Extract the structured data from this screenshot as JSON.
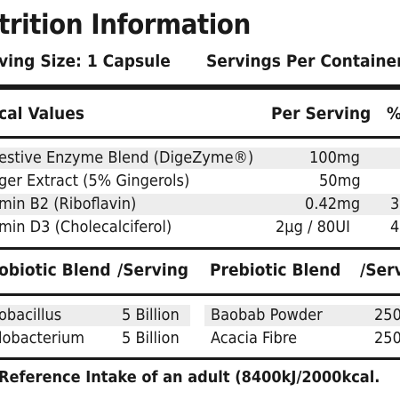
{
  "title": "trition Information",
  "serving_size": "ving Size: 1 Capsule",
  "servings_per_container": "Servings Per Container:",
  "values_table": {
    "headers": {
      "name": "cal Values",
      "per_serving": "Per Serving",
      "percent": "%"
    },
    "rows": [
      {
        "name": "estive Enzyme Blend (DigeZyme®)",
        "per_serving": "100mg",
        "percent": ""
      },
      {
        "name": "ger Extract (5% Gingerols)",
        "per_serving": "50mg",
        "percent": ""
      },
      {
        "name": "min B2 (Riboflavin)",
        "per_serving": "0.42mg",
        "percent": "3"
      },
      {
        "name": "min D3 (Cholecalciferol)",
        "per_serving": "2µg / 80UI",
        "percent": "4"
      }
    ]
  },
  "blend_table": {
    "headers": {
      "probiotic": "obiotic Blend",
      "probiotic_serving": "/Serving",
      "prebiotic": "Prebiotic Blend",
      "prebiotic_serving": "/Serv"
    },
    "rows": [
      {
        "probiotic": "obacillus",
        "probiotic_serving": "5 Billion",
        "prebiotic": "Baobab Powder",
        "prebiotic_serving": "250"
      },
      {
        "probiotic": "lobacterium",
        "probiotic_serving": "5 Billion",
        "prebiotic": "Acacia Fibre",
        "prebiotic_serving": "250"
      }
    ]
  },
  "footnote": "Reference Intake of an adult (8400kJ/2000kcal."
}
